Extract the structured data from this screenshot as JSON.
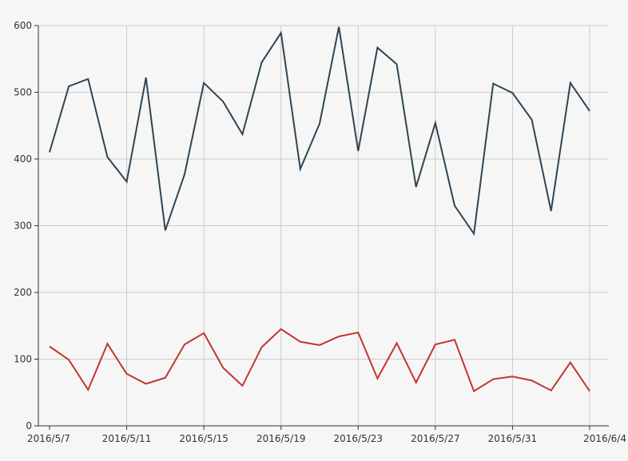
{
  "chart_data": {
    "type": "line",
    "title": "",
    "xlabel": "",
    "ylabel": "",
    "x": [
      "2016/5/7",
      "2016/5/8",
      "2016/5/9",
      "2016/5/10",
      "2016/5/11",
      "2016/5/12",
      "2016/5/13",
      "2016/5/14",
      "2016/5/15",
      "2016/5/16",
      "2016/5/17",
      "2016/5/18",
      "2016/5/19",
      "2016/5/20",
      "2016/5/21",
      "2016/5/22",
      "2016/5/23",
      "2016/5/24",
      "2016/5/25",
      "2016/5/26",
      "2016/5/27",
      "2016/5/28",
      "2016/5/29",
      "2016/5/30",
      "2016/5/31",
      "2016/6/1",
      "2016/6/2",
      "2016/6/3",
      "2016/6/4"
    ],
    "series": [
      {
        "color": "#2f4554",
        "values": [
          410,
          509,
          520,
          403,
          366,
          522,
          293,
          377,
          514,
          486,
          437,
          545,
          589,
          385,
          453,
          598,
          412,
          567,
          542,
          358,
          454,
          330,
          288,
          513,
          499,
          459,
          322,
          514,
          472
        ]
      },
      {
        "color": "#c23531",
        "values": [
          119,
          99,
          54,
          123,
          78,
          63,
          72,
          122,
          139,
          87,
          60,
          118,
          145,
          126,
          121,
          134,
          140,
          71,
          124,
          65,
          122,
          129,
          52,
          70,
          74,
          68,
          53,
          95,
          52
        ]
      }
    ],
    "xticks": [
      "2016/5/7",
      "2016/5/11",
      "2016/5/15",
      "2016/5/19",
      "2016/5/23",
      "2016/5/27",
      "2016/5/31",
      "2016/6/4"
    ],
    "yticks": [
      0,
      100,
      200,
      300,
      400,
      500,
      600
    ],
    "ylim": [
      0,
      600
    ],
    "grid": true,
    "legend": "none"
  }
}
